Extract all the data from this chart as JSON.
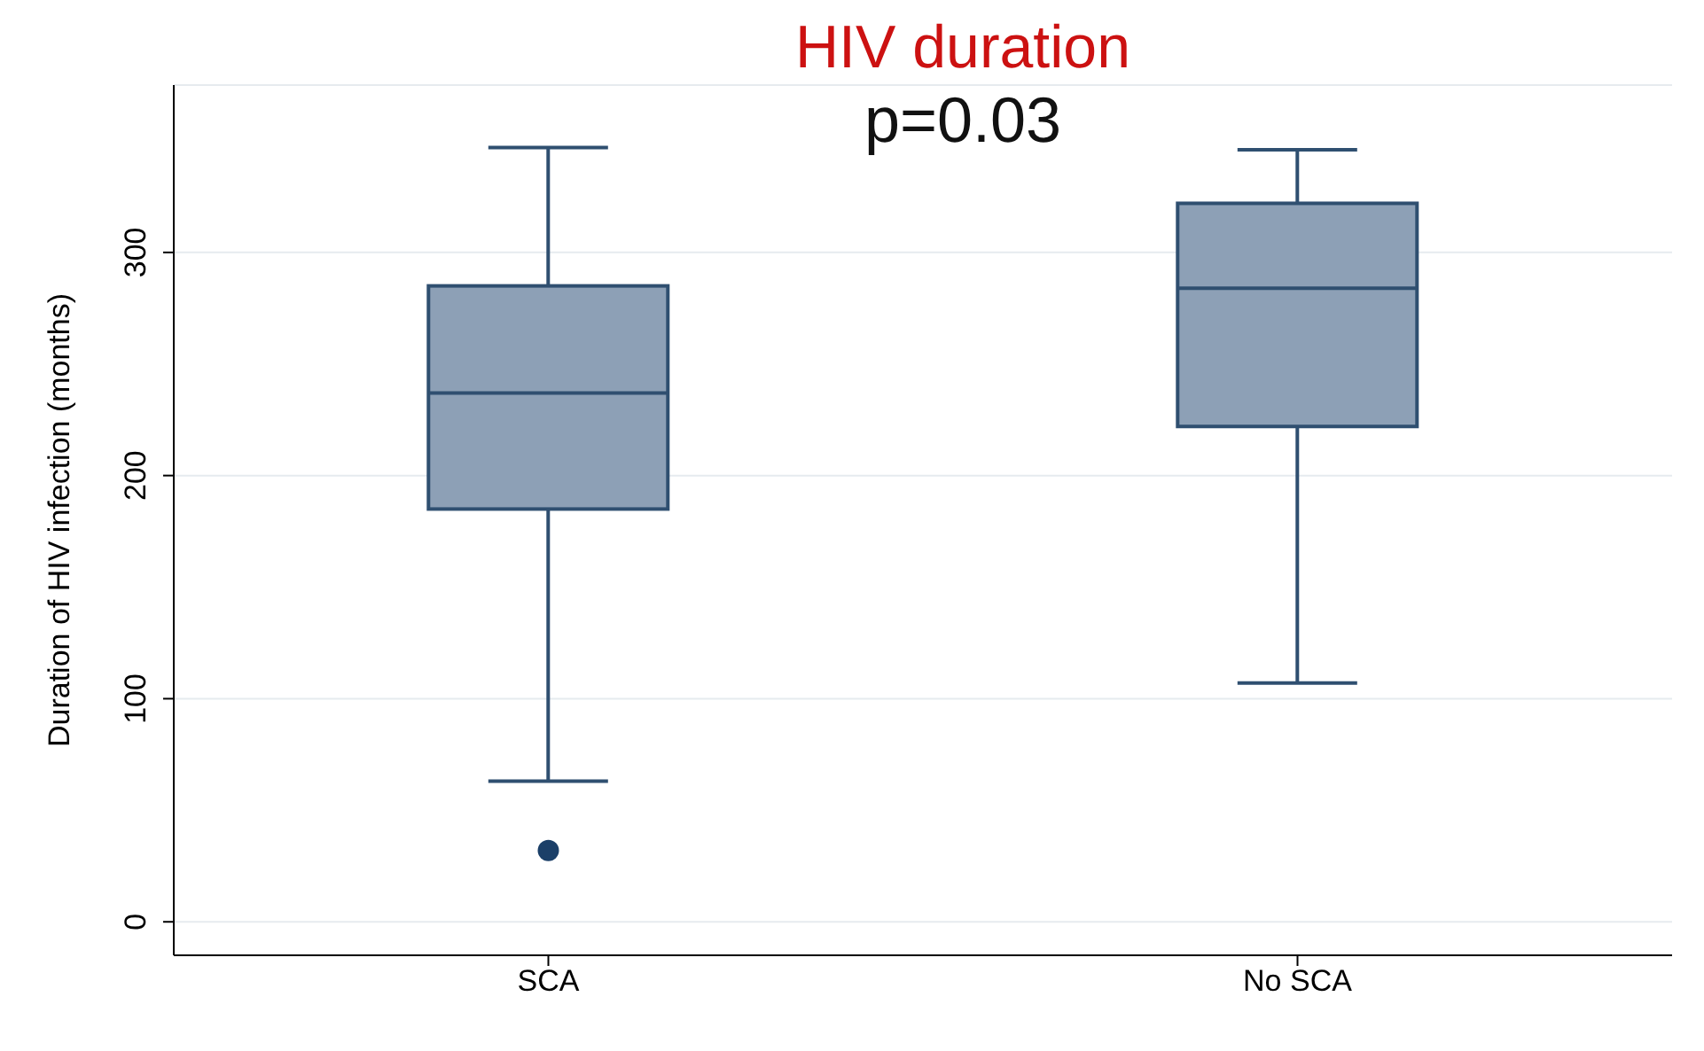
{
  "chart_data": {
    "type": "box",
    "title": "HIV duration",
    "annotations": [
      "p=0.03"
    ],
    "ylabel": "Duration of HIV infection (months)",
    "categories": [
      "SCA",
      "No SCA"
    ],
    "color": "#8da0b6",
    "boxes": [
      {
        "low": 63,
        "q1": 185,
        "median": 237,
        "q3": 285,
        "high": 347,
        "outliers": [
          32
        ]
      },
      {
        "low": 107,
        "q1": 222,
        "median": 284,
        "q3": 322,
        "high": 346
      }
    ],
    "ylim": [
      -15,
      375
    ],
    "yticks": [
      0,
      100,
      200,
      300
    ],
    "grid": "y"
  }
}
